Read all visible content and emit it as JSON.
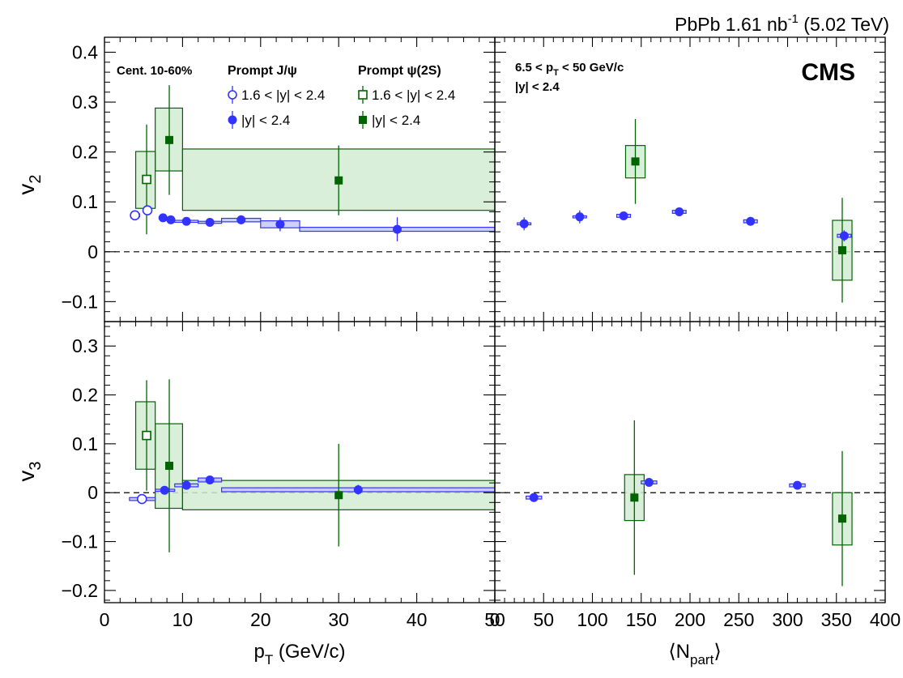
{
  "header": {
    "system": "PbPb 1.61 nb",
    "lumi_exp": "-1",
    "energy": " (5.02 TeV)",
    "experiment": "CMS"
  },
  "legend": {
    "centrality": "Cent. 10-60%",
    "jpsi_title": "Prompt J/ψ",
    "psi2s_title": "Prompt  ψ(2S)",
    "fwd_label": "1.6 < |y| < 2.4",
    "all_label": "|y| < 2.4"
  },
  "npart_text": {
    "pt_range_a": "6.5 < p",
    "pt_range_sub": "T",
    "pt_range_b": " < 50 GeV/c",
    "rapidity": "|y| < 2.4"
  },
  "axes": {
    "v2_label": "v",
    "v2_sub": "2",
    "v3_label": "v",
    "v3_sub": "3",
    "pt_label": "p",
    "pt_sub": "T",
    "pt_unit": " (GeV/c)",
    "npart_label_a": "⟨N",
    "npart_sub": "part",
    "npart_label_b": "⟩"
  },
  "chart_data": [
    {
      "panel": "v2-vs-pt",
      "type": "scatter",
      "xlim": [
        0,
        50
      ],
      "ylim": [
        -0.14,
        0.43
      ],
      "x_ticks": [
        0,
        10,
        20,
        30,
        40,
        50
      ],
      "y_ticks": [
        -0.1,
        0,
        0.1,
        0.2,
        0.3,
        0.4
      ],
      "y_tick_labels": [
        "−0.1",
        "0",
        "0.1",
        "0.2",
        "0.3",
        "0.4"
      ],
      "series": [
        {
          "key": "jpsi_all",
          "color": "#3333ff",
          "marker": "circle-filled",
          "points": [
            {
              "x": 7.5,
              "y": 0.068,
              "err": 0.005,
              "sx0": 7,
              "sx1": 8,
              "sy0": 0.066,
              "sy1": 0.07
            },
            {
              "x": 8.5,
              "y": 0.064,
              "err": 0.005,
              "sx0": 8,
              "sx1": 9,
              "sy0": 0.062,
              "sy1": 0.066
            },
            {
              "x": 10.5,
              "y": 0.061,
              "err": 0.005,
              "sx0": 9,
              "sx1": 12,
              "sy0": 0.059,
              "sy1": 0.063
            },
            {
              "x": 13.5,
              "y": 0.059,
              "err": 0.006,
              "sx0": 12,
              "sx1": 15,
              "sy0": 0.057,
              "sy1": 0.061
            },
            {
              "x": 17.5,
              "y": 0.064,
              "err": 0.009,
              "sx0": 15,
              "sx1": 20,
              "sy0": 0.06,
              "sy1": 0.067
            },
            {
              "x": 22.5,
              "y": 0.055,
              "err": 0.014,
              "sx0": 20,
              "sx1": 25,
              "sy0": 0.048,
              "sy1": 0.062
            },
            {
              "x": 37.5,
              "y": 0.045,
              "err": 0.024,
              "sx0": 25,
              "sx1": 50,
              "sy0": 0.041,
              "sy1": 0.049
            }
          ]
        },
        {
          "key": "jpsi_fwd",
          "color": "#3333ff",
          "marker": "circle-open",
          "points": [
            {
              "x": 3.9,
              "y": 0.073,
              "err": 0.009,
              "sx0": 3.5,
              "sx1": 4.5,
              "sy0": 0.07,
              "sy1": 0.076
            },
            {
              "x": 5.5,
              "y": 0.083,
              "err": 0.009,
              "sx0": 5,
              "sx1": 6,
              "sy0": 0.08,
              "sy1": 0.086
            }
          ]
        },
        {
          "key": "psi2s_all",
          "color": "#006400",
          "marker": "square-filled",
          "points": [
            {
              "x": 8.3,
              "y": 0.224,
              "err": 0.11,
              "sx0": 6.5,
              "sx1": 10,
              "sy0": 0.162,
              "sy1": 0.288
            },
            {
              "x": 30.0,
              "y": 0.143,
              "err": 0.07,
              "sx0": 10,
              "sx1": 50,
              "sy0": 0.083,
              "sy1": 0.206
            }
          ]
        },
        {
          "key": "psi2s_fwd",
          "color": "#006400",
          "marker": "square-open",
          "points": [
            {
              "x": 5.4,
              "y": 0.145,
              "err": 0.11,
              "sx0": 4,
              "sx1": 6.5,
              "sy0": 0.087,
              "sy1": 0.201
            }
          ]
        }
      ]
    },
    {
      "panel": "v2-vs-npart",
      "type": "scatter",
      "xlim": [
        0,
        400
      ],
      "ylim": [
        -0.14,
        0.43
      ],
      "x_ticks": [
        0,
        50,
        100,
        150,
        200,
        250,
        300,
        350,
        400
      ],
      "y_ticks": [
        -0.1,
        0,
        0.1,
        0.2,
        0.3,
        0.4
      ],
      "series": [
        {
          "key": "jpsi_all",
          "color": "#3333ff",
          "marker": "circle-filled",
          "points": [
            {
              "x": 30,
              "y": 0.056,
              "err": 0.013,
              "sx0": 23,
              "sx1": 37,
              "sy0": 0.054,
              "sy1": 0.058
            },
            {
              "x": 87,
              "y": 0.07,
              "err": 0.013,
              "sx0": 80,
              "sx1": 94,
              "sy0": 0.068,
              "sy1": 0.072
            },
            {
              "x": 132,
              "y": 0.072,
              "err": 0.008,
              "sx0": 125,
              "sx1": 139,
              "sy0": 0.069,
              "sy1": 0.075
            },
            {
              "x": 189,
              "y": 0.08,
              "err": 0.007,
              "sx0": 182,
              "sx1": 196,
              "sy0": 0.077,
              "sy1": 0.083
            },
            {
              "x": 262,
              "y": 0.061,
              "err": 0.006,
              "sx0": 255,
              "sx1": 269,
              "sy0": 0.058,
              "sy1": 0.064
            },
            {
              "x": 358,
              "y": 0.032,
              "err": 0.011,
              "sx0": 351,
              "sx1": 365,
              "sy0": 0.029,
              "sy1": 0.035
            }
          ]
        },
        {
          "key": "psi2s_all",
          "color": "#006400",
          "marker": "square-filled",
          "points": [
            {
              "x": 144,
              "y": 0.181,
              "err": 0.085,
              "sx0": 134,
              "sx1": 154,
              "sy0": 0.148,
              "sy1": 0.213
            },
            {
              "x": 356,
              "y": 0.003,
              "err": 0.105,
              "sx0": 346,
              "sx1": 366,
              "sy0": -0.057,
              "sy1": 0.063
            }
          ]
        }
      ]
    },
    {
      "panel": "v3-vs-pt",
      "type": "scatter",
      "xlim": [
        0,
        50
      ],
      "ylim": [
        -0.225,
        0.35
      ],
      "x_ticks": [
        0,
        10,
        20,
        30,
        40,
        50
      ],
      "x_tick_labels": [
        "0",
        "10",
        "20",
        "30",
        "40",
        "50"
      ],
      "y_ticks": [
        -0.2,
        -0.1,
        0,
        0.1,
        0.2,
        0.3
      ],
      "y_tick_labels": [
        "−0.2",
        "−0.1",
        "0",
        "0.1",
        "0.2",
        "0.3"
      ],
      "series": [
        {
          "key": "jpsi_all",
          "color": "#3333ff",
          "marker": "circle-filled",
          "points": [
            {
              "x": 7.7,
              "y": 0.005,
              "err": 0.005,
              "sx0": 6.5,
              "sx1": 9,
              "sy0": 0.003,
              "sy1": 0.007
            },
            {
              "x": 10.5,
              "y": 0.015,
              "err": 0.005,
              "sx0": 9,
              "sx1": 12,
              "sy0": 0.012,
              "sy1": 0.018
            },
            {
              "x": 13.5,
              "y": 0.026,
              "err": 0.006,
              "sx0": 12,
              "sx1": 15,
              "sy0": 0.022,
              "sy1": 0.03
            },
            {
              "x": 32.5,
              "y": 0.006,
              "err": 0.01,
              "sx0": 15,
              "sx1": 50,
              "sy0": 0.002,
              "sy1": 0.01
            }
          ]
        },
        {
          "key": "jpsi_fwd",
          "color": "#3333ff",
          "marker": "circle-open",
          "points": [
            {
              "x": 4.8,
              "y": -0.013,
              "err": 0.006,
              "sx0": 3.2,
              "sx1": 6.5,
              "sy0": -0.016,
              "sy1": -0.01
            }
          ]
        },
        {
          "key": "psi2s_all",
          "color": "#006400",
          "marker": "square-filled",
          "points": [
            {
              "x": 8.3,
              "y": 0.055,
              "err": 0.177,
              "sx0": 6.5,
              "sx1": 10,
              "sy0": -0.032,
              "sy1": 0.141
            },
            {
              "x": 30.0,
              "y": -0.005,
              "err": 0.105,
              "sx0": 10,
              "sx1": 50,
              "sy0": -0.035,
              "sy1": 0.025
            }
          ]
        },
        {
          "key": "psi2s_fwd",
          "color": "#006400",
          "marker": "square-open",
          "points": [
            {
              "x": 5.4,
              "y": 0.117,
              "err": 0.113,
              "sx0": 4,
              "sx1": 6.5,
              "sy0": 0.048,
              "sy1": 0.186
            }
          ]
        }
      ]
    },
    {
      "panel": "v3-vs-npart",
      "type": "scatter",
      "xlim": [
        0,
        400
      ],
      "ylim": [
        -0.225,
        0.35
      ],
      "x_ticks": [
        0,
        50,
        100,
        150,
        200,
        250,
        300,
        350,
        400
      ],
      "x_tick_labels": [
        "0",
        "50",
        "100",
        "150",
        "200",
        "250",
        "300",
        "350",
        "400"
      ],
      "y_ticks": [
        -0.2,
        -0.1,
        0,
        0.1,
        0.2,
        0.3
      ],
      "series": [
        {
          "key": "jpsi_all",
          "color": "#3333ff",
          "marker": "circle-filled",
          "points": [
            {
              "x": 40,
              "y": -0.01,
              "err": 0.008,
              "sx0": 32,
              "sx1": 48,
              "sy0": -0.013,
              "sy1": -0.007
            },
            {
              "x": 158,
              "y": 0.021,
              "err": 0.005,
              "sx0": 150,
              "sx1": 166,
              "sy0": 0.018,
              "sy1": 0.024
            },
            {
              "x": 310,
              "y": 0.015,
              "err": 0.005,
              "sx0": 302,
              "sx1": 318,
              "sy0": 0.012,
              "sy1": 0.018
            }
          ]
        },
        {
          "key": "psi2s_all",
          "color": "#006400",
          "marker": "square-filled",
          "points": [
            {
              "x": 143,
              "y": -0.01,
              "err": 0.158,
              "sx0": 133,
              "sx1": 153,
              "sy0": -0.057,
              "sy1": 0.037
            },
            {
              "x": 356,
              "y": -0.053,
              "err": 0.138,
              "sx0": 346,
              "sx1": 366,
              "sy0": -0.107,
              "sy1": 0.0
            }
          ]
        }
      ]
    }
  ]
}
